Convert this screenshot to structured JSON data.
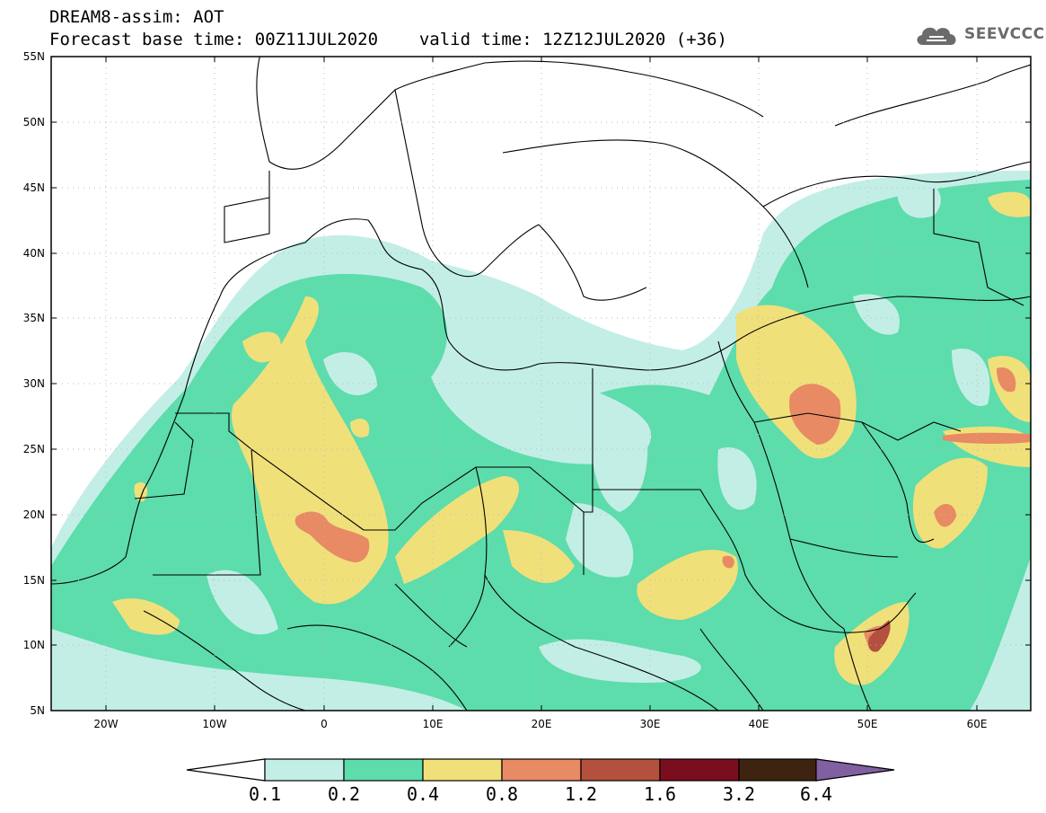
{
  "header": {
    "line1": "DREAM8-assim: AOT",
    "line2_base": "Forecast base time: 00Z11JUL2020",
    "line2_valid": "valid time: 12Z12JUL2020 (+36)"
  },
  "logo": {
    "text": "SEEVCCC",
    "icon": "cloud-icon"
  },
  "map": {
    "lat_labels": [
      "55N",
      "50N",
      "45N",
      "40N",
      "35N",
      "30N",
      "25N",
      "20N",
      "15N",
      "10N",
      "5N"
    ],
    "lon_labels": [
      "20W",
      "10W",
      "0",
      "10E",
      "20E",
      "30E",
      "40E",
      "50E",
      "60E"
    ]
  },
  "colorbar": {
    "labels": [
      "0.1",
      "0.2",
      "0.4",
      "0.8",
      "1.2",
      "1.6",
      "3.2",
      "6.4"
    ],
    "colors": [
      "#c2eee6",
      "#5ddcac",
      "#f0e07a",
      "#e88a64",
      "#b4503e",
      "#7a0e1e",
      "#3e2410",
      "#8060a0"
    ]
  }
}
